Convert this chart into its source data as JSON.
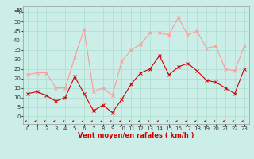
{
  "x": [
    0,
    1,
    2,
    3,
    4,
    5,
    6,
    7,
    8,
    9,
    10,
    11,
    12,
    13,
    14,
    15,
    16,
    17,
    18,
    19,
    20,
    21,
    22,
    23
  ],
  "vent_moyen": [
    12,
    13,
    11,
    8,
    10,
    21,
    12,
    3,
    6,
    2,
    9,
    17,
    23,
    25,
    32,
    22,
    26,
    28,
    24,
    19,
    18,
    15,
    12,
    25
  ],
  "rafales": [
    22,
    23,
    23,
    15,
    15,
    31,
    46,
    13,
    15,
    11,
    29,
    35,
    38,
    44,
    44,
    43,
    52,
    43,
    45,
    36,
    37,
    25,
    24,
    37
  ],
  "bg_color": "#cceee8",
  "grid_color": "#aaddcc",
  "line_moyen_color": "#cc0000",
  "line_rafales_color": "#ff9999",
  "arrow_color": "#cc0000",
  "xlabel": "Vent moyen/en rafales ( km/h )",
  "ylabel_ticks": [
    0,
    5,
    10,
    15,
    20,
    25,
    30,
    35,
    40,
    45,
    50,
    55
  ],
  "xlim": [
    -0.5,
    23.5
  ],
  "ylim": [
    -4,
    58
  ],
  "axis_fontsize": 5.5,
  "tick_fontsize": 5.0,
  "xlabel_fontsize": 6.0
}
